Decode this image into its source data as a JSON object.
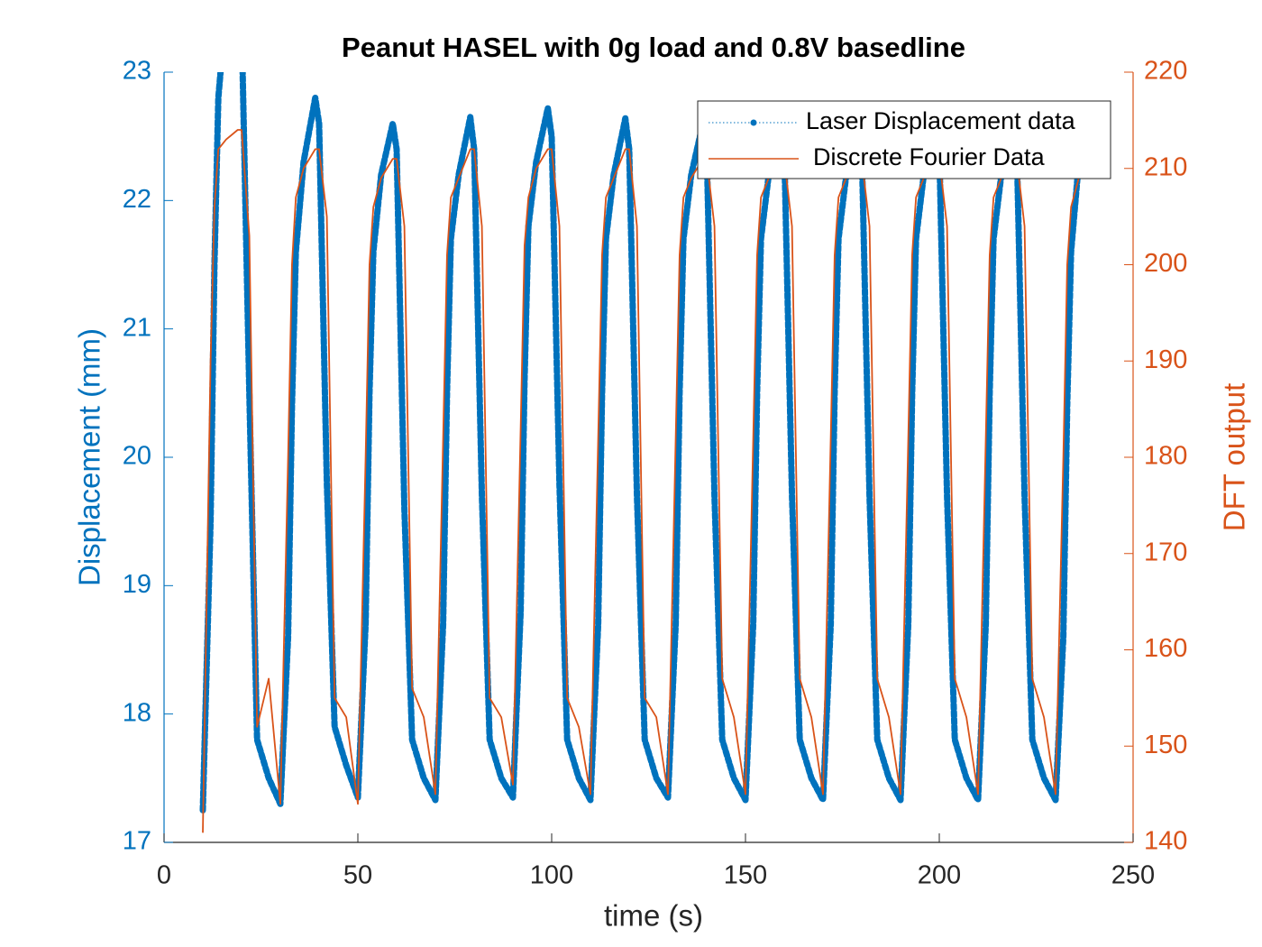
{
  "chart_data": {
    "type": "line",
    "title": "Peanut HASEL with 0g load and 0.8V basedline",
    "x_label": "time (s)",
    "y_label": "Displacement (mm)",
    "y2_label": "DFT output",
    "xlim": [
      0,
      250
    ],
    "xticks": [
      0,
      50,
      100,
      150,
      200,
      250
    ],
    "ylim": [
      17,
      23
    ],
    "yticks": [
      17,
      18,
      19,
      20,
      21,
      22,
      23
    ],
    "y2lim": [
      140,
      220
    ],
    "y2ticks": [
      140,
      150,
      160,
      170,
      180,
      190,
      200,
      210,
      220
    ],
    "y_color": "#0072bd",
    "y2_color": "#d95319",
    "legend": "northeast",
    "x": [
      10,
      12,
      13,
      14,
      16,
      19,
      20,
      22,
      24,
      27,
      30,
      32,
      33,
      34,
      36,
      39,
      40,
      42,
      44,
      47,
      50,
      52,
      53,
      54,
      56,
      59,
      60,
      62,
      64,
      67,
      70,
      72,
      73,
      74,
      76,
      79,
      80,
      82,
      84,
      87,
      90,
      92,
      93,
      94,
      96,
      99,
      100,
      102,
      104,
      107,
      110,
      112,
      113,
      114,
      116,
      119,
      120,
      122,
      124,
      127,
      130,
      132,
      133,
      134,
      136,
      139,
      140,
      142,
      144,
      147,
      150,
      152,
      153,
      154,
      156,
      159,
      160,
      162,
      164,
      167,
      170,
      172,
      173,
      174,
      176,
      179,
      180,
      182,
      184,
      187,
      190,
      192,
      193,
      194,
      196,
      199,
      200,
      202,
      204,
      207,
      210,
      212,
      213,
      214,
      216,
      219,
      220,
      222,
      224,
      227,
      230,
      232,
      233,
      234,
      236
    ],
    "series": [
      {
        "name": "Laser Displacement data",
        "color": "#0072bd",
        "axis": "y",
        "values": [
          17.25,
          19.5,
          21.5,
          22.8,
          23.5,
          23.6,
          23.4,
          20.5,
          17.8,
          17.5,
          17.3,
          18.6,
          20.4,
          21.6,
          22.3,
          22.8,
          22.6,
          19.8,
          17.9,
          17.6,
          17.35,
          18.7,
          20.5,
          21.6,
          22.2,
          22.6,
          22.4,
          19.6,
          17.8,
          17.5,
          17.33,
          18.7,
          20.5,
          21.7,
          22.2,
          22.65,
          22.4,
          19.7,
          17.8,
          17.5,
          17.35,
          18.8,
          20.6,
          21.8,
          22.3,
          22.72,
          22.5,
          19.8,
          17.8,
          17.5,
          17.33,
          18.7,
          20.5,
          21.7,
          22.2,
          22.64,
          22.4,
          19.7,
          17.8,
          17.5,
          17.35,
          18.7,
          20.5,
          21.7,
          22.2,
          22.6,
          22.4,
          19.7,
          17.8,
          17.5,
          17.33,
          18.7,
          20.5,
          21.7,
          22.2,
          22.6,
          22.4,
          19.7,
          17.8,
          17.5,
          17.33,
          18.7,
          20.5,
          21.7,
          22.2,
          22.6,
          22.4,
          19.7,
          17.8,
          17.5,
          17.33,
          18.7,
          20.5,
          21.7,
          22.2,
          22.6,
          22.4,
          19.7,
          17.8,
          17.5,
          17.33,
          18.7,
          20.5,
          21.7,
          22.2,
          22.6,
          22.4,
          19.7,
          17.8,
          17.5,
          17.33,
          18.6,
          20.4,
          21.6,
          22.3
        ]
      },
      {
        "name": "Discrete Fourier Data",
        "color": "#d95319",
        "axis": "y2",
        "values": [
          141,
          190,
          206,
          212,
          213,
          214,
          214,
          203,
          152,
          157,
          144,
          180,
          200,
          207,
          210,
          212,
          212,
          205,
          155,
          153,
          144,
          180,
          200,
          206,
          209,
          211,
          211,
          204,
          156,
          153,
          145,
          182,
          201,
          207,
          209,
          212,
          212,
          204,
          155,
          153,
          146,
          183,
          202,
          207,
          210,
          212,
          212,
          204,
          155,
          152,
          145,
          182,
          201,
          207,
          209,
          212,
          212,
          204,
          155,
          153,
          145,
          182,
          201,
          207,
          209,
          211,
          211,
          204,
          157,
          153,
          145,
          182,
          201,
          207,
          209,
          211,
          211,
          204,
          157,
          153,
          145,
          182,
          201,
          207,
          209,
          211,
          211,
          204,
          157,
          153,
          145,
          182,
          201,
          207,
          209,
          211,
          211,
          204,
          157,
          153,
          145,
          182,
          201,
          207,
          209,
          211,
          211,
          204,
          157,
          153,
          145,
          180,
          200,
          206,
          209
        ]
      }
    ]
  }
}
